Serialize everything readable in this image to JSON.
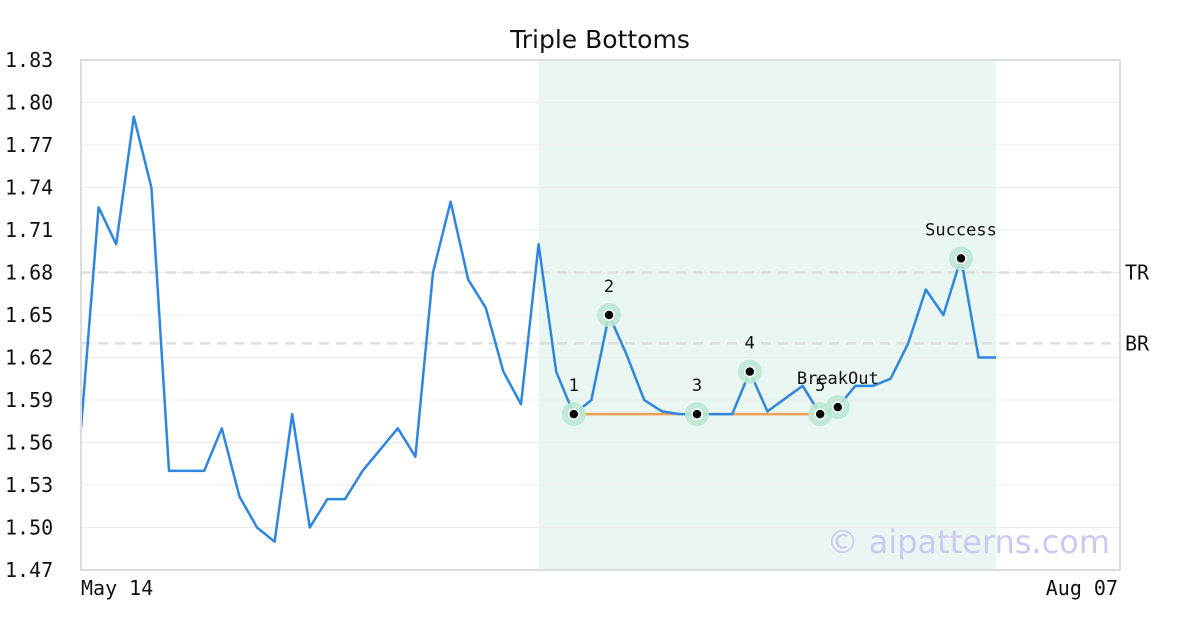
{
  "chart_data": {
    "type": "line",
    "title": "Triple Bottoms",
    "xlabel": "",
    "ylabel": "",
    "ylim": [
      1.47,
      1.83
    ],
    "y_ticks": [
      "1.83",
      "1.80",
      "1.77",
      "1.74",
      "1.71",
      "1.68",
      "1.65",
      "1.62",
      "1.59",
      "1.56",
      "1.53",
      "1.50",
      "1.47"
    ],
    "x_tick_labels": [
      "May 14",
      "Aug 07"
    ],
    "grid": "horizontal",
    "series": [
      {
        "color": "#2e86de",
        "values": [
          1.57,
          1.726,
          1.7,
          1.79,
          1.74,
          1.54,
          1.54,
          1.54,
          1.57,
          1.522,
          1.5,
          1.49,
          1.58,
          1.5,
          1.52,
          1.52,
          1.54,
          1.555,
          1.57,
          1.55,
          1.68,
          1.73,
          1.675,
          1.655,
          1.61,
          1.587,
          1.7,
          1.61,
          1.58,
          1.59,
          1.65,
          1.622,
          1.59,
          1.582,
          1.58,
          1.58,
          1.58,
          1.58,
          1.61,
          1.582,
          1.591,
          1.6,
          1.58,
          1.585,
          1.6,
          1.6,
          1.605,
          1.63,
          1.668,
          1.65,
          1.69,
          1.62,
          1.62
        ]
      }
    ],
    "highlight_region": {
      "start_index": 26,
      "end_index": 52,
      "color": "#eaf6f1"
    },
    "horizontal_lines": [
      {
        "label": "TR",
        "value": 1.68,
        "style": "dashed"
      },
      {
        "label": "BR",
        "value": 1.63,
        "style": "dashed"
      }
    ],
    "support_line": {
      "value": 1.58,
      "from_index": 28,
      "to_index": 42,
      "color": "#f0a050"
    },
    "markers": [
      {
        "label": "1",
        "index": 28,
        "value": 1.58
      },
      {
        "label": "2",
        "index": 30,
        "value": 1.65
      },
      {
        "label": "3",
        "index": 35,
        "value": 1.58
      },
      {
        "label": "4",
        "index": 38,
        "value": 1.61
      },
      {
        "label": "5",
        "index": 42,
        "value": 1.58
      },
      {
        "label": "BreakOut",
        "index": 43,
        "value": 1.585
      },
      {
        "label": "Success",
        "index": 50,
        "value": 1.69
      }
    ],
    "watermark": "© aipatterns.com"
  }
}
